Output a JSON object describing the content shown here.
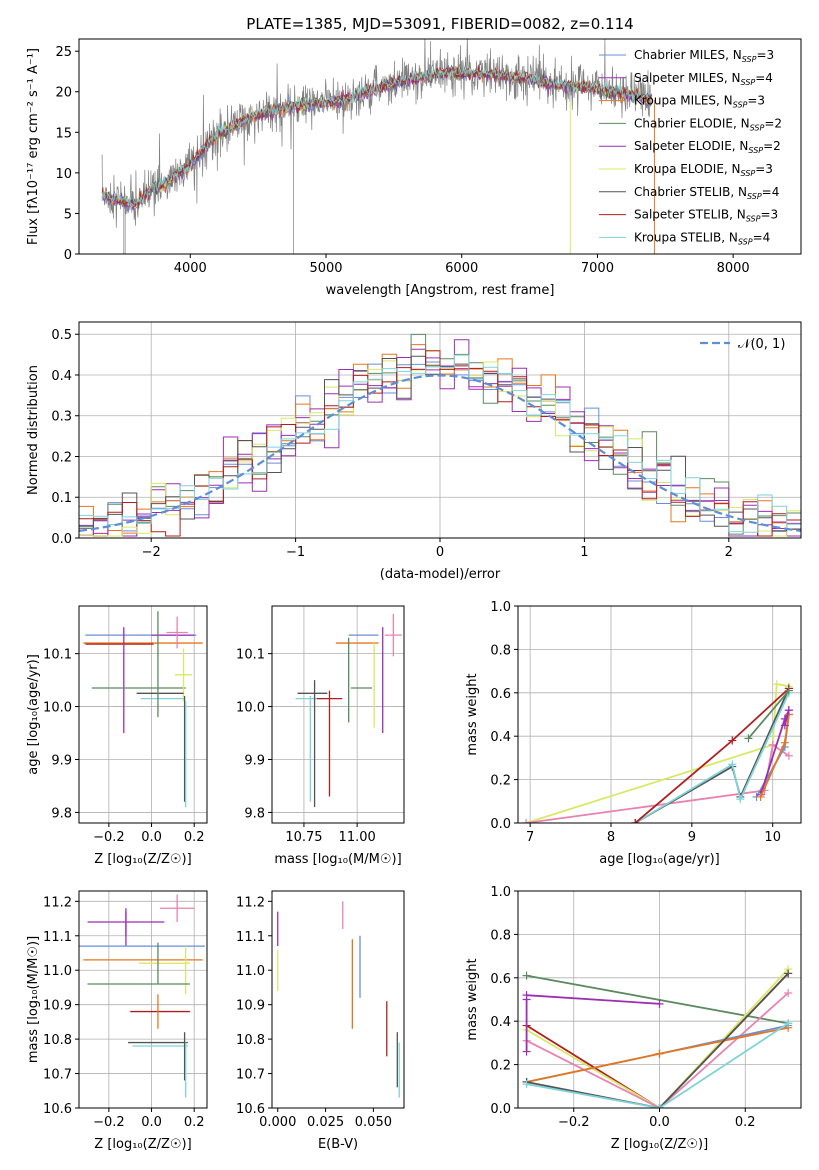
{
  "figure": {
    "title": "PLATE=1385, MJD=53091, FIBERID=0082, z=0.114"
  },
  "models": [
    {
      "name": "Chabrier MILES, N",
      "sub": "SSP",
      "tail": "=3",
      "color": "#6a8ed8"
    },
    {
      "name": "Salpeter MILES, N",
      "sub": "SSP",
      "tail": "=4",
      "color": "#9b2fb4"
    },
    {
      "name": "Kroupa MILES, N",
      "sub": "SSP",
      "tail": "=3",
      "color": "#e6761e"
    },
    {
      "name": "Chabrier ELODIE, N",
      "sub": "SSP",
      "tail": "=2",
      "color": "#5b8a61"
    },
    {
      "name": "Salpeter ELODIE, N",
      "sub": "SSP",
      "tail": "=2",
      "color": "#9b2fb4"
    },
    {
      "name": "Kroupa ELODIE, N",
      "sub": "SSP",
      "tail": "=3",
      "color": "#d9e866"
    },
    {
      "name": "Chabrier STELIB, N",
      "sub": "SSP",
      "tail": "=4",
      "color": "#545454"
    },
    {
      "name": "Salpeter STELIB, N",
      "sub": "SSP",
      "tail": "=3",
      "color": "#b01e1e"
    },
    {
      "name": "Kroupa STELIB, N",
      "sub": "SSP",
      "tail": "=4",
      "color": "#7ed3da"
    }
  ],
  "extra_colors": {
    "pink": "#e882b0",
    "normal": "#5d8ed8",
    "data": "#808080"
  },
  "chart_data": [
    {
      "id": "spectrum",
      "type": "line",
      "xlabel": "wavelength [Angstrom, rest frame]",
      "ylabel": "Flux [fλ10⁻¹⁷ erg cm⁻² s⁻¹ A⁻¹]",
      "xlim": [
        3180,
        8500
      ],
      "ylim": [
        0,
        26.5
      ],
      "xticks": [
        4000,
        5000,
        6000,
        7000,
        8000
      ],
      "yticks": [
        0,
        5,
        10,
        15,
        20,
        25
      ],
      "data_range": [
        3350,
        7400
      ],
      "envelope": [
        [
          3350,
          7.2
        ],
        [
          3500,
          6.5
        ],
        [
          3600,
          6.0
        ],
        [
          3700,
          7.8
        ],
        [
          3800,
          8.5
        ],
        [
          3900,
          9.8
        ],
        [
          4000,
          10.8
        ],
        [
          4100,
          13.0
        ],
        [
          4200,
          14.8
        ],
        [
          4300,
          15.5
        ],
        [
          4400,
          16.5
        ],
        [
          4500,
          17.2
        ],
        [
          4700,
          18.0
        ],
        [
          4900,
          18.5
        ],
        [
          5100,
          18.8
        ],
        [
          5300,
          20.0
        ],
        [
          5500,
          21.0
        ],
        [
          5700,
          21.8
        ],
        [
          5900,
          22.4
        ],
        [
          6100,
          22.2
        ],
        [
          6300,
          22.0
        ],
        [
          6500,
          21.6
        ],
        [
          6700,
          20.8
        ],
        [
          6900,
          20.6
        ],
        [
          7100,
          20.0
        ],
        [
          7300,
          19.5
        ],
        [
          7400,
          19.0
        ]
      ],
      "grid": false,
      "legend": "top-right"
    },
    {
      "id": "residuals",
      "type": "histogram",
      "xlabel": "(data-model)/error",
      "ylabel": "Normed distribution",
      "xlim": [
        -2.5,
        2.5
      ],
      "ylim": [
        0,
        0.53
      ],
      "xticks": [
        -2,
        -1,
        0,
        1,
        2
      ],
      "xticklabels": [
        "−2",
        "−1",
        "0",
        "1",
        "2"
      ],
      "yticks": [
        0.0,
        0.1,
        0.2,
        0.3,
        0.4,
        0.5
      ],
      "bin_width": 0.1,
      "curve": "N(0,1)",
      "legend_label": "𝒩(0, 1)",
      "grid": true,
      "legend": "top-right"
    },
    {
      "id": "age_vs_Z",
      "type": "errorbar",
      "xlabel": "Z [log₁₀(Z/Z☉)]",
      "ylabel": "age  [log₁₀(age/yr)]",
      "xlim": [
        -0.34,
        0.26
      ],
      "ylim": [
        9.78,
        10.19
      ],
      "xticks": [
        -0.2,
        0.0,
        0.2
      ],
      "xticklabels": [
        "−0.2",
        "0.0",
        "0.2"
      ],
      "yticks": [
        9.8,
        9.9,
        10.0,
        10.1
      ],
      "points": [
        {
          "c": 0,
          "x": -0.05,
          "xe": 0.26,
          "y": 10.135,
          "ye": 0.0
        },
        {
          "c": 2,
          "x": -0.04,
          "xe": 0.28,
          "y": 10.12,
          "ye": 0.0
        },
        {
          "c": 7,
          "x": -0.15,
          "xe": 0.16,
          "y": 10.118,
          "ye": 0.0
        },
        {
          "c": 4,
          "x": -0.13,
          "xe": 0.0,
          "y": 10.05,
          "ye": 0.1
        },
        {
          "c": 1,
          "x": 0.1,
          "xe": 0.1,
          "y": 10.135,
          "ye": 0.0
        },
        {
          "c": 9,
          "x": 0.12,
          "xe": 0.05,
          "y": 10.14,
          "ye": 0.03
        },
        {
          "c": 3,
          "x": -0.06,
          "xe": 0.22,
          "y": 10.035,
          "ye": 0.0
        },
        {
          "c": 5,
          "x": 0.15,
          "xe": 0.04,
          "y": 10.06,
          "ye": 0.05
        },
        {
          "c": 6,
          "x": 0.04,
          "xe": 0.11,
          "y": 10.025,
          "ye": 0.0
        },
        {
          "c": 8,
          "x": 0.05,
          "xe": 0.1,
          "y": 10.015,
          "ye": 0.0
        },
        {
          "c": 3,
          "x": 0.03,
          "xe": 0.0,
          "y": 10.08,
          "ye": 0.1
        },
        {
          "c": 6,
          "x": 0.155,
          "xe": 0.0,
          "y": 9.92,
          "ye": 0.1
        },
        {
          "c": 8,
          "x": 0.16,
          "xe": 0.0,
          "y": 9.91,
          "ye": 0.1
        }
      ],
      "grid": true
    },
    {
      "id": "age_vs_mass",
      "type": "errorbar",
      "xlabel": "mass [log₁₀(M/M☉)]",
      "xlim": [
        10.6,
        11.22
      ],
      "ylim": [
        9.78,
        10.19
      ],
      "xticks": [
        10.75,
        11.0
      ],
      "xticklabels": [
        "10.75",
        "11.00"
      ],
      "yticks": [
        9.8,
        9.9,
        10.0,
        10.1
      ],
      "points": [
        {
          "c": 0,
          "x": 11.03,
          "xe": 0.07,
          "y": 10.135,
          "ye": 0.0
        },
        {
          "c": 2,
          "x": 11.0,
          "xe": 0.1,
          "y": 10.12,
          "ye": 0.0
        },
        {
          "c": 9,
          "x": 11.17,
          "xe": 0.04,
          "y": 10.135,
          "ye": 0.04
        },
        {
          "c": 1,
          "x": 11.12,
          "xe": 0.0,
          "y": 10.05,
          "ye": 0.1
        },
        {
          "c": 5,
          "x": 11.08,
          "xe": 0.0,
          "y": 10.04,
          "ye": 0.08
        },
        {
          "c": 3,
          "x": 11.02,
          "xe": 0.05,
          "y": 10.035,
          "ye": 0.0
        },
        {
          "c": 6,
          "x": 10.79,
          "xe": 0.07,
          "y": 10.025,
          "ye": 0.0
        },
        {
          "c": 8,
          "x": 10.78,
          "xe": 0.07,
          "y": 10.015,
          "ye": 0.0
        },
        {
          "c": 7,
          "x": 10.87,
          "xe": 0.06,
          "y": 10.015,
          "ye": 0.0
        },
        {
          "c": 7,
          "x": 10.87,
          "xe": 0.0,
          "y": 9.93,
          "ye": 0.1
        },
        {
          "c": 6,
          "x": 10.8,
          "xe": 0.0,
          "y": 9.93,
          "ye": 0.12
        },
        {
          "c": 8,
          "x": 10.78,
          "xe": 0.0,
          "y": 9.92,
          "ye": 0.1
        },
        {
          "c": 3,
          "x": 10.96,
          "xe": 0.0,
          "y": 10.05,
          "ye": 0.08
        }
      ],
      "grid": true
    },
    {
      "id": "mw_vs_age",
      "type": "line",
      "xlabel": "age  [log₁₀(age/yr)]",
      "ylabel": "mass weight",
      "xlim": [
        6.85,
        10.35
      ],
      "ylim": [
        0,
        1
      ],
      "xticks": [
        7,
        8,
        9,
        10
      ],
      "yticks": [
        0.0,
        0.2,
        0.4,
        0.6,
        0.8,
        1.0
      ],
      "series": [
        {
          "c": 5,
          "pts": [
            [
              6.95,
              0.0
            ],
            [
              10.0,
              0.36
            ],
            [
              10.05,
              0.64
            ],
            [
              10.2,
              0.63
            ]
          ]
        },
        {
          "c": 9,
          "pts": [
            [
              6.95,
              0.0
            ],
            [
              9.9,
              0.15
            ],
            [
              10.0,
              0.36
            ],
            [
              10.2,
              0.31
            ]
          ]
        },
        {
          "c": 6,
          "pts": [
            [
              8.3,
              0.0
            ],
            [
              9.5,
              0.26
            ],
            [
              9.6,
              0.12
            ],
            [
              10.2,
              0.62
            ]
          ]
        },
        {
          "c": 8,
          "pts": [
            [
              8.3,
              0.0
            ],
            [
              9.5,
              0.27
            ],
            [
              9.6,
              0.11
            ],
            [
              10.2,
              0.6
            ]
          ]
        },
        {
          "c": 7,
          "pts": [
            [
              8.3,
              0.0
            ],
            [
              9.5,
              0.38
            ],
            [
              10.2,
              0.62
            ]
          ]
        },
        {
          "c": 0,
          "pts": [
            [
              9.8,
              0.12
            ],
            [
              10.15,
              0.35
            ],
            [
              10.2,
              0.5
            ]
          ]
        },
        {
          "c": 1,
          "pts": [
            [
              9.85,
              0.13
            ],
            [
              10.15,
              0.48
            ],
            [
              10.2,
              0.52
            ]
          ]
        },
        {
          "c": 2,
          "pts": [
            [
              9.85,
              0.12
            ],
            [
              10.15,
              0.37
            ],
            [
              10.2,
              0.5
            ]
          ]
        },
        {
          "c": 3,
          "pts": [
            [
              9.7,
              0.39
            ],
            [
              10.2,
              0.61
            ]
          ]
        },
        {
          "c": 4,
          "pts": [
            [
              10.15,
              0.45
            ],
            [
              10.2,
              0.52
            ]
          ]
        }
      ],
      "grid": true
    },
    {
      "id": "mass_vs_Z",
      "type": "errorbar",
      "xlabel": "Z [log₁₀(Z/Z☉)]",
      "ylabel": "mass [log₁₀(M/M☉)]",
      "xlim": [
        -0.34,
        0.26
      ],
      "ylim": [
        10.6,
        11.23
      ],
      "xticks": [
        -0.2,
        0.0,
        0.2
      ],
      "xticklabels": [
        "−0.2",
        "0.0",
        "0.2"
      ],
      "yticks": [
        10.6,
        10.7,
        10.8,
        10.9,
        11.0,
        11.1,
        11.2
      ],
      "points": [
        {
          "c": 9,
          "x": 0.12,
          "xe": 0.08,
          "y": 11.18,
          "ye": 0.04
        },
        {
          "c": 4,
          "x": -0.12,
          "xe": 0.18,
          "y": 11.14,
          "ye": 0.04
        },
        {
          "c": 1,
          "x": -0.12,
          "xe": 0.0,
          "y": 11.12,
          "ye": 0.05
        },
        {
          "c": 0,
          "x": -0.05,
          "xe": 0.3,
          "y": 11.07,
          "ye": 0.0
        },
        {
          "c": 2,
          "x": -0.04,
          "xe": 0.28,
          "y": 11.03,
          "ye": 0.0
        },
        {
          "c": 5,
          "x": 0.06,
          "xe": 0.12,
          "y": 11.02,
          "ye": 0.0
        },
        {
          "c": 5,
          "x": 0.16,
          "xe": 0.0,
          "y": 11.0,
          "ye": 0.07
        },
        {
          "c": 3,
          "x": -0.06,
          "xe": 0.24,
          "y": 10.96,
          "ye": 0.0
        },
        {
          "c": 3,
          "x": 0.03,
          "xe": 0.0,
          "y": 11.02,
          "ye": 0.06
        },
        {
          "c": 7,
          "x": 0.04,
          "xe": 0.14,
          "y": 10.88,
          "ye": 0.0
        },
        {
          "c": 2,
          "x": 0.03,
          "xe": 0.0,
          "y": 10.88,
          "ye": 0.05
        },
        {
          "c": 6,
          "x": 0.03,
          "xe": 0.14,
          "y": 10.79,
          "ye": 0.0
        },
        {
          "c": 8,
          "x": 0.04,
          "xe": 0.13,
          "y": 10.78,
          "ye": 0.0
        },
        {
          "c": 6,
          "x": 0.155,
          "xe": 0.0,
          "y": 10.75,
          "ye": 0.07
        },
        {
          "c": 8,
          "x": 0.16,
          "xe": 0.0,
          "y": 10.71,
          "ye": 0.08
        }
      ],
      "grid": true
    },
    {
      "id": "mass_vs_ebv",
      "type": "errorbar",
      "xlabel": "E(B-V)",
      "xlim": [
        -0.003,
        0.066
      ],
      "ylim": [
        10.6,
        11.23
      ],
      "xticks": [
        0.0,
        0.025,
        0.05
      ],
      "xticklabels": [
        "0.000",
        "0.025",
        "0.050"
      ],
      "yticks": [
        10.6,
        10.7,
        10.8,
        10.9,
        11.0,
        11.1,
        11.2
      ],
      "points": [
        {
          "c": 4,
          "x": 0.0,
          "xe": 0.0,
          "y": 11.12,
          "ye": 0.05
        },
        {
          "c": 5,
          "x": 0.0,
          "xe": 0.0,
          "y": 11.0,
          "ye": 0.06
        },
        {
          "c": 9,
          "x": 0.034,
          "xe": 0.0,
          "y": 11.16,
          "ye": 0.04
        },
        {
          "c": 0,
          "x": 0.043,
          "xe": 0.0,
          "y": 11.01,
          "ye": 0.09
        },
        {
          "c": 2,
          "x": 0.039,
          "xe": 0.0,
          "y": 10.96,
          "ye": 0.13
        },
        {
          "c": 7,
          "x": 0.057,
          "xe": 0.0,
          "y": 10.83,
          "ye": 0.08
        },
        {
          "c": 6,
          "x": 0.0625,
          "xe": 0.0,
          "y": 10.74,
          "ye": 0.08
        },
        {
          "c": 8,
          "x": 0.0635,
          "xe": 0.0,
          "y": 10.71,
          "ye": 0.08
        }
      ],
      "grid": false
    },
    {
      "id": "mw_vs_Z",
      "type": "line",
      "xlabel": "Z [log₁₀(Z/Z☉)]",
      "ylabel": "mass weight",
      "xlim": [
        -0.33,
        0.33
      ],
      "ylim": [
        0,
        1
      ],
      "xticks": [
        -0.2,
        0.0,
        0.2
      ],
      "xticklabels": [
        "−0.2",
        "0.0",
        "0.2"
      ],
      "yticks": [
        0.0,
        0.2,
        0.4,
        0.6,
        0.8,
        1.0
      ],
      "series": [
        {
          "c": 3,
          "pts": [
            [
              -0.31,
              0.61
            ],
            [
              0.3,
              0.39
            ]
          ]
        },
        {
          "c": 1,
          "pts": [
            [
              -0.31,
              0.52
            ],
            [
              0.0,
              0.48
            ]
          ]
        },
        {
          "c": 7,
          "pts": [
            [
              -0.31,
              0.38
            ],
            [
              0.0,
              0.0
            ],
            [
              0.3,
              0.62
            ]
          ]
        },
        {
          "c": 5,
          "pts": [
            [
              -0.31,
              0.36
            ],
            [
              0.0,
              0.0
            ],
            [
              0.3,
              0.64
            ]
          ]
        },
        {
          "c": 9,
          "pts": [
            [
              -0.31,
              0.31
            ],
            [
              0.0,
              0.0
            ],
            [
              0.3,
              0.53
            ]
          ]
        },
        {
          "c": 0,
          "pts": [
            [
              -0.31,
              0.12
            ],
            [
              0.0,
              0.25
            ],
            [
              0.3,
              0.38
            ]
          ]
        },
        {
          "c": 2,
          "pts": [
            [
              -0.31,
              0.12
            ],
            [
              0.0,
              0.25
            ],
            [
              0.3,
              0.37
            ]
          ]
        },
        {
          "c": 6,
          "pts": [
            [
              -0.31,
              0.12
            ],
            [
              0.0,
              0.0
            ],
            [
              0.3,
              0.62
            ]
          ]
        },
        {
          "c": 8,
          "pts": [
            [
              -0.31,
              0.11
            ],
            [
              0.0,
              0.0
            ],
            [
              0.3,
              0.39
            ]
          ]
        },
        {
          "c": 4,
          "pts": [
            [
              -0.31,
              0.26
            ],
            [
              -0.31,
              0.5
            ]
          ]
        }
      ],
      "grid": true
    }
  ]
}
